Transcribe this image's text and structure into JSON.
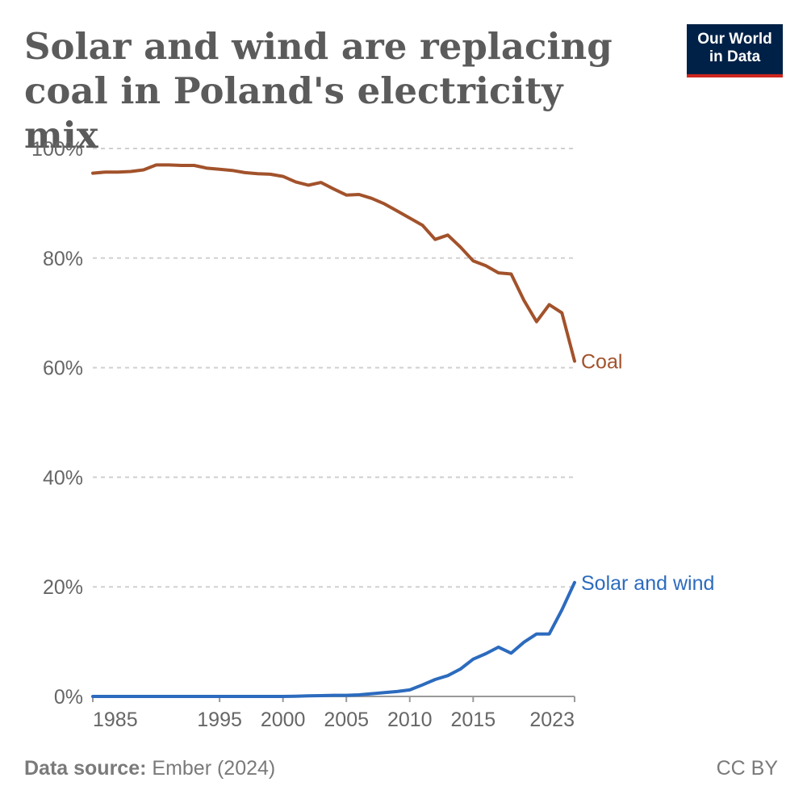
{
  "header": {
    "title_line1": "Solar and wind are replacing",
    "title_line2": "coal in Poland's electricity mix"
  },
  "logo": {
    "line1": "Our World",
    "line2": "in Data",
    "bg_color": "#002147",
    "accent_color": "#ce261e"
  },
  "footer": {
    "source_label": "Data source:",
    "source_value": "Ember (2024)",
    "license": "CC BY"
  },
  "chart_data": {
    "type": "line",
    "title": "Solar and wind are replacing coal in Poland's electricity mix",
    "xlabel": "",
    "ylabel": "",
    "xlim": [
      1985,
      2023
    ],
    "ylim": [
      0,
      100
    ],
    "grid": true,
    "x_ticks": [
      {
        "value": 1985,
        "label": "1985"
      },
      {
        "value": 1995,
        "label": "1995"
      },
      {
        "value": 2000,
        "label": "2000"
      },
      {
        "value": 2005,
        "label": "2005"
      },
      {
        "value": 2010,
        "label": "2010"
      },
      {
        "value": 2015,
        "label": "2015"
      },
      {
        "value": 2023,
        "label": "2023"
      }
    ],
    "y_ticks": [
      {
        "value": 0,
        "label": "0%"
      },
      {
        "value": 20,
        "label": "20%"
      },
      {
        "value": 40,
        "label": "40%"
      },
      {
        "value": 60,
        "label": "60%"
      },
      {
        "value": 80,
        "label": "80%"
      },
      {
        "value": 100,
        "label": "100%"
      }
    ],
    "x": [
      1985,
      1986,
      1987,
      1988,
      1989,
      1990,
      1991,
      1992,
      1993,
      1994,
      1995,
      1996,
      1997,
      1998,
      1999,
      2000,
      2001,
      2002,
      2003,
      2004,
      2005,
      2006,
      2007,
      2008,
      2009,
      2010,
      2011,
      2012,
      2013,
      2014,
      2015,
      2016,
      2017,
      2018,
      2019,
      2020,
      2021,
      2022,
      2023
    ],
    "series": [
      {
        "name": "Coal",
        "color": "#a2522b",
        "values": [
          95.5,
          95.7,
          95.7,
          95.8,
          96.1,
          97.0,
          97.0,
          96.9,
          96.9,
          96.4,
          96.2,
          96.0,
          95.6,
          95.4,
          95.3,
          94.9,
          93.9,
          93.3,
          93.8,
          92.6,
          91.5,
          91.6,
          90.9,
          89.9,
          88.6,
          87.3,
          86.0,
          83.4,
          84.2,
          82.0,
          79.5,
          78.6,
          77.3,
          77.1,
          72.3,
          68.4,
          71.5,
          70.0,
          61.2
        ]
      },
      {
        "name": "Solar and wind",
        "color": "#2c6bbe",
        "values": [
          0,
          0,
          0,
          0,
          0,
          0,
          0,
          0,
          0,
          0,
          0,
          0,
          0,
          0,
          0,
          0,
          0.05,
          0.1,
          0.15,
          0.2,
          0.2,
          0.3,
          0.5,
          0.7,
          0.9,
          1.2,
          2.1,
          3.1,
          3.8,
          5.0,
          6.8,
          7.8,
          9.0,
          7.9,
          9.9,
          11.4,
          11.4,
          15.8,
          20.8
        ]
      }
    ]
  }
}
